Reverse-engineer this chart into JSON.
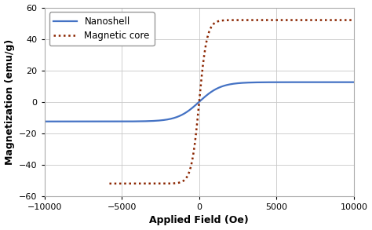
{
  "title": "",
  "xlabel": "Applied Field (Oe)",
  "ylabel": "Magnetization (emu/g)",
  "xlim": [
    -10000,
    10000
  ],
  "ylim": [
    -60,
    60
  ],
  "xticks": [
    -10000,
    -5000,
    0,
    5000,
    10000
  ],
  "yticks": [
    -60,
    -40,
    -20,
    0,
    20,
    40,
    60
  ],
  "magnetic_core_color": "#8B2500",
  "nanoshell_color": "#4472C4",
  "legend_labels": [
    "Magnetic core",
    "Nanoshell"
  ],
  "magnetic_core_sat": 52.0,
  "nanoshell_sat": 12.5,
  "magnetic_core_steepness": 500,
  "nanoshell_steepness": 1400,
  "core_x_start": -5800,
  "background_color": "#ffffff",
  "grid_color": "#c8c8c8",
  "fig_width": 4.74,
  "fig_height": 2.93,
  "dpi": 100
}
